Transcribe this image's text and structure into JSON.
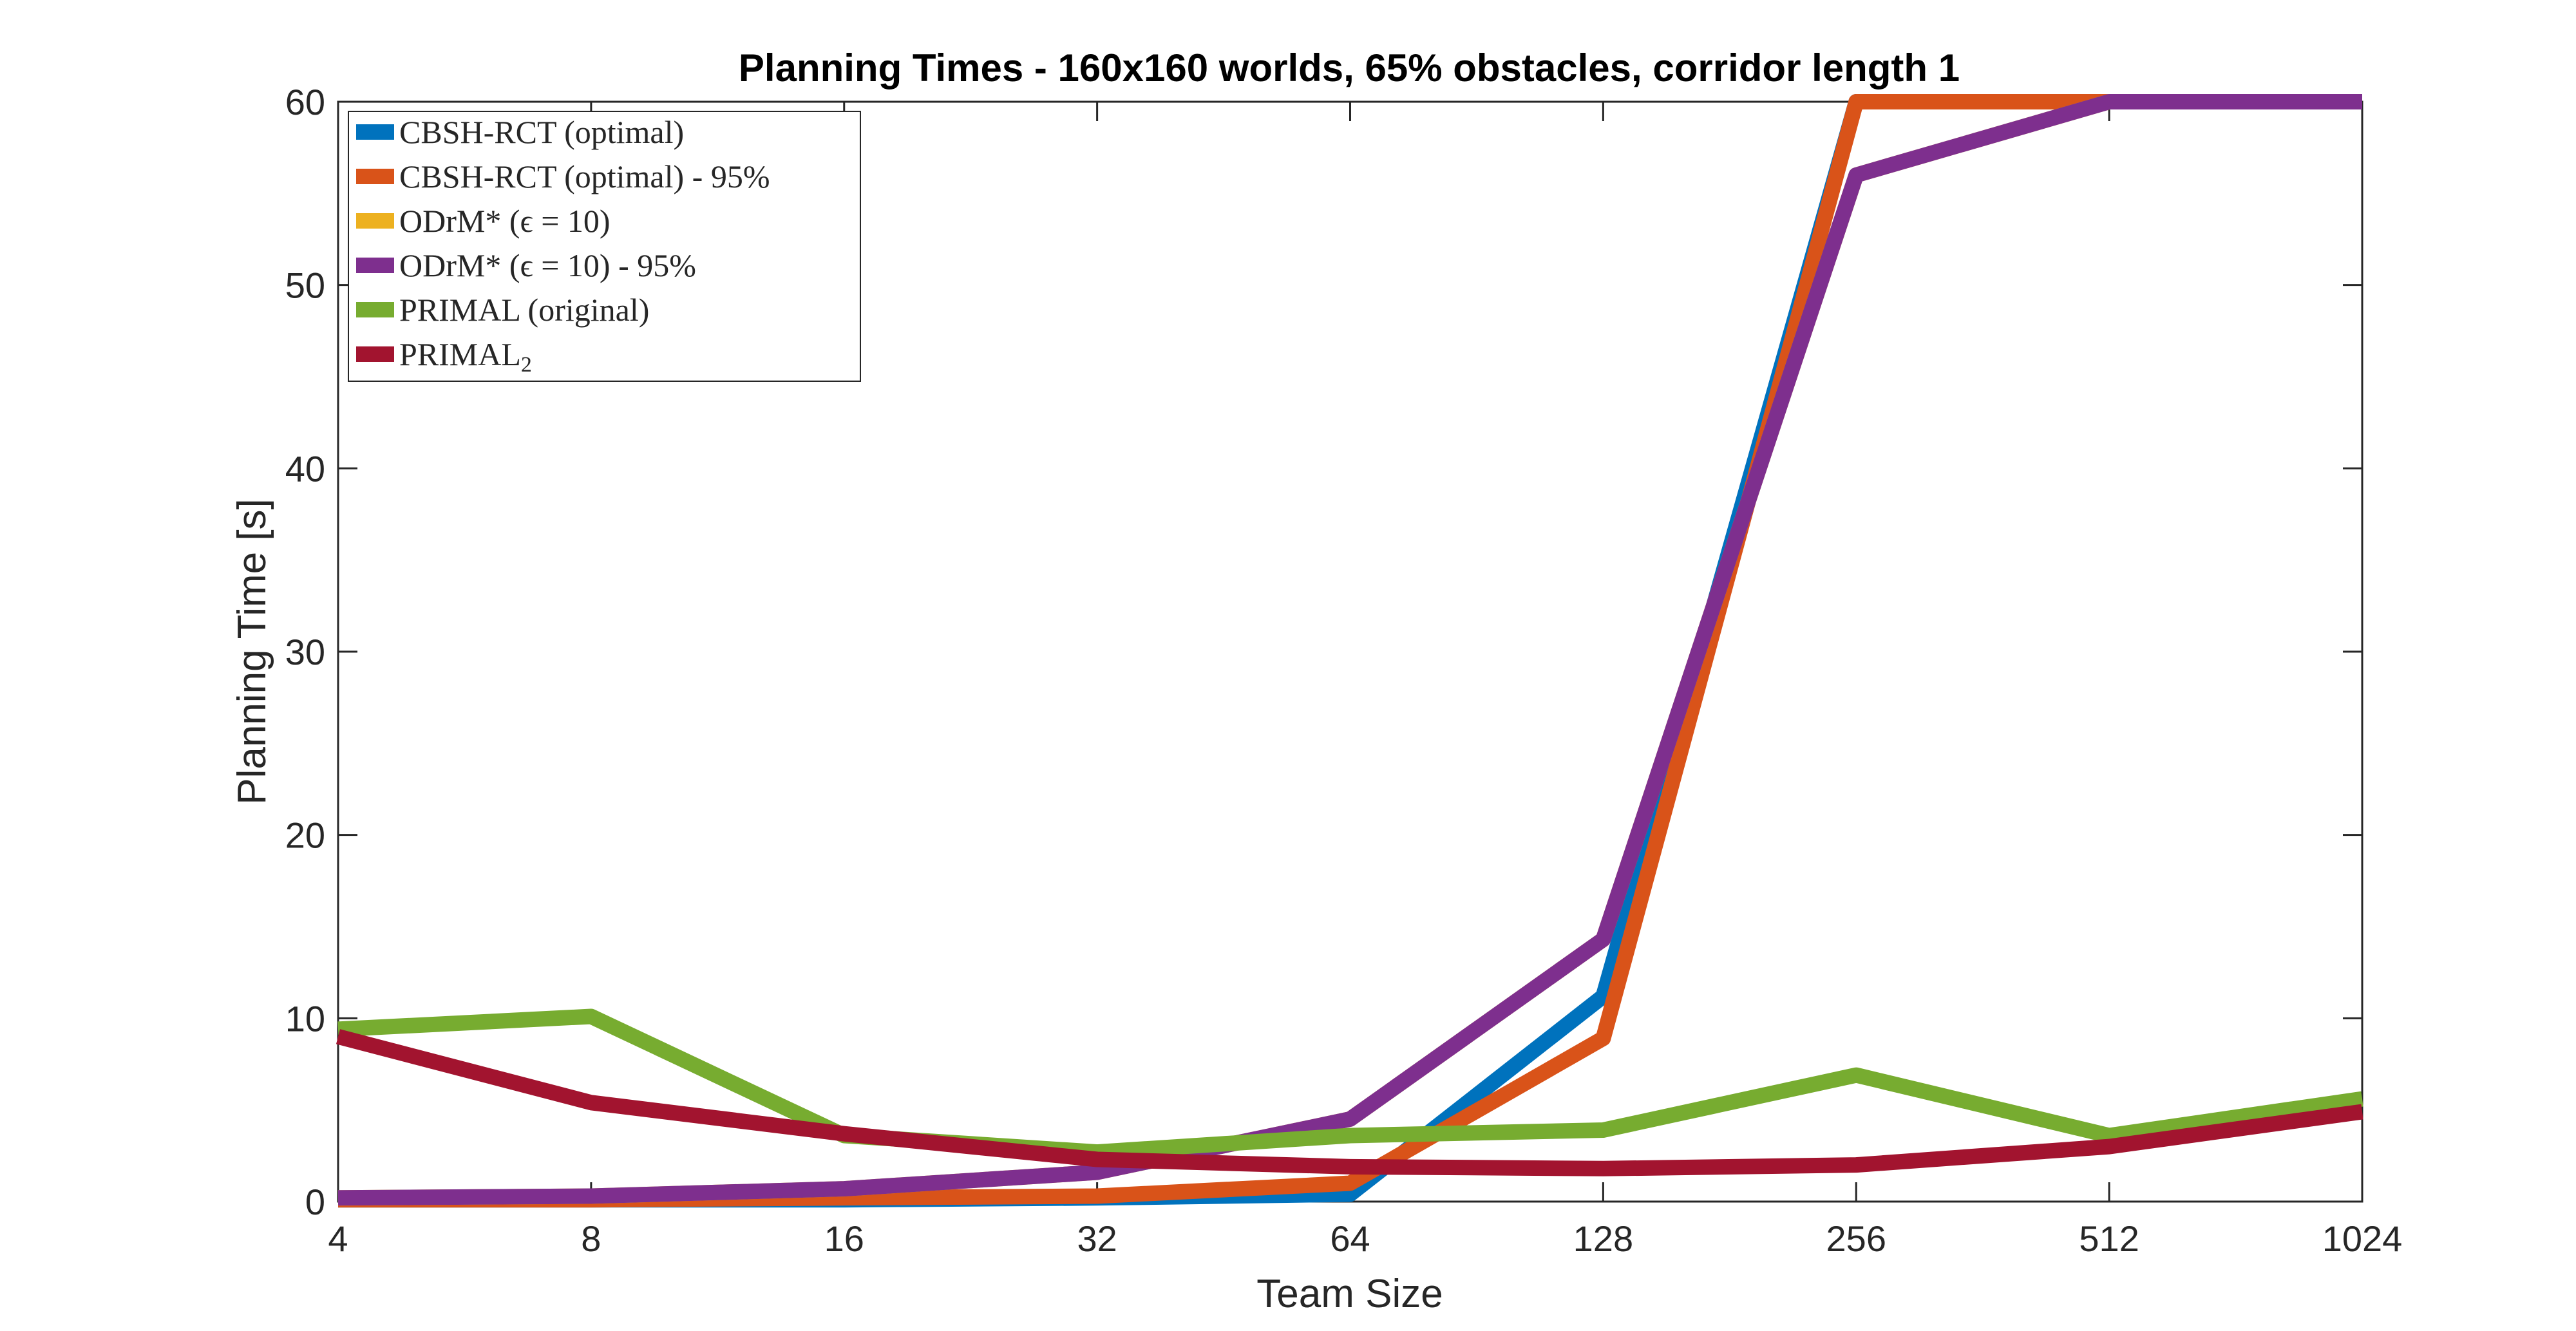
{
  "chart_data": {
    "type": "line",
    "title": "Planning Times - 160x160 worlds, 65% obstacles, corridor length 1",
    "xlabel": "Team Size",
    "ylabel": "Planning Time [s]",
    "x_scale": "log2",
    "categories": [
      "4",
      "8",
      "16",
      "32",
      "64",
      "128",
      "256",
      "512",
      "1024"
    ],
    "x": [
      4,
      8,
      16,
      32,
      64,
      128,
      256,
      512,
      1024
    ],
    "xlim": [
      4,
      1024
    ],
    "ylim": [
      0,
      60
    ],
    "yticks": [
      0,
      10,
      20,
      30,
      40,
      50,
      60
    ],
    "grid": false,
    "legend_position": "top-left",
    "series": [
      {
        "name": "CBSH-RCT (optimal)",
        "color": "#0072BD",
        "values": [
          0.1,
          0.1,
          0.1,
          0.2,
          0.4,
          11.2,
          60,
          60,
          60
        ]
      },
      {
        "name": "CBSH-RCT (optimal) - 95%",
        "color": "#D95319",
        "values": [
          0.1,
          0.1,
          0.2,
          0.3,
          1.0,
          8.9,
          60,
          60,
          60
        ]
      },
      {
        "name": "ODrM* (ϵ = 10)",
        "color": "#EDB120",
        "values": [
          0.2,
          0.3,
          0.7,
          1.6,
          4.5,
          14.3,
          56,
          60,
          60
        ]
      },
      {
        "name": "ODrM* (ϵ = 10) - 95%",
        "color": "#7E2F8E",
        "values": [
          0.2,
          0.3,
          0.7,
          1.6,
          4.5,
          14.3,
          56,
          60,
          60
        ]
      },
      {
        "name": "PRIMAL (original)",
        "color": "#77AC30",
        "values": [
          9.4,
          10.1,
          3.6,
          2.7,
          3.6,
          3.9,
          6.9,
          3.6,
          5.6
        ]
      },
      {
        "name": "PRIMAL",
        "name_subscript": "2",
        "color": "#A2142F",
        "values": [
          9.0,
          5.4,
          3.7,
          2.3,
          1.9,
          1.8,
          2.0,
          3.0,
          4.9
        ]
      }
    ]
  }
}
